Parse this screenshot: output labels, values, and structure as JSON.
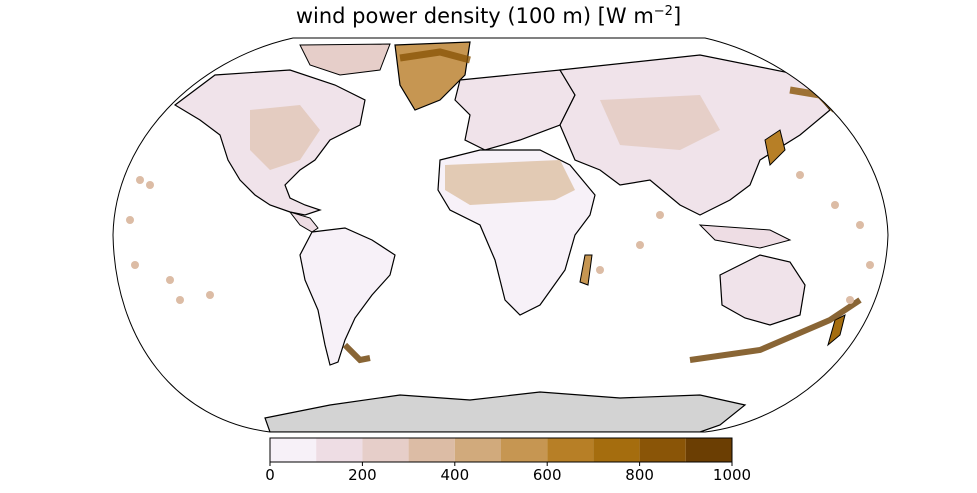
{
  "figure": {
    "title_main": "wind power density (100 m) [W m",
    "title_exp": "−2",
    "title_close": "]"
  },
  "map": {
    "projection": "Robinson",
    "land_fill_low_color": "#f7f1f8",
    "antarctica_color": "#d3d3d3",
    "coastline_color": "#000000"
  },
  "colorbar": {
    "bins": [
      0,
      100,
      200,
      300,
      400,
      500,
      600,
      700,
      800,
      900,
      1000
    ],
    "colors": [
      "#f7f1f8",
      "#eedde4",
      "#e6cec9",
      "#dcbca5",
      "#d1aa7c",
      "#c69652",
      "#b77f26",
      "#a56d0e",
      "#8a5507",
      "#6b3e03"
    ],
    "tick_labels": [
      "0",
      "200",
      "400",
      "600",
      "800",
      "1000"
    ]
  }
}
